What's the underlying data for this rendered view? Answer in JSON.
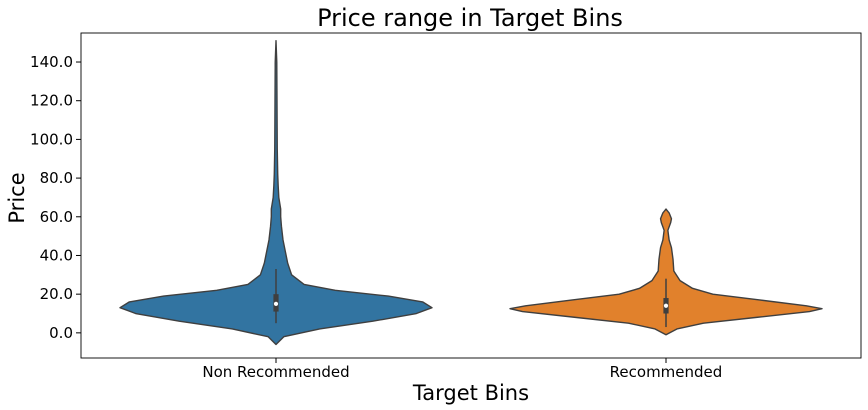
{
  "chart_data": {
    "type": "violin",
    "title": "Price range in Target Bins",
    "xlabel": "Target Bins",
    "ylabel": "Price",
    "categories": [
      "Non Recommended",
      "Recommended"
    ],
    "colors": [
      "#3274a1",
      "#e1812c"
    ],
    "ylim": [
      -13,
      155
    ],
    "yticks": [
      0,
      20,
      40,
      60,
      80,
      100,
      120,
      140
    ],
    "ytick_labels": [
      "0.0",
      "20.0",
      "40.0",
      "60.0",
      "80.0",
      "100.0",
      "120.0",
      "140.0"
    ],
    "grid": false,
    "legend": "none",
    "series": [
      {
        "category": "Non Recommended",
        "color": "#3274a1",
        "min": -6,
        "max": 151,
        "q1": 11,
        "median": 15,
        "q3": 20,
        "whisker_low": 5,
        "whisker_high": 33,
        "density_profile": [
          [
            -6,
            0
          ],
          [
            -2,
            0.05
          ],
          [
            2,
            0.28
          ],
          [
            6,
            0.62
          ],
          [
            10,
            0.9
          ],
          [
            13,
            1.0
          ],
          [
            16,
            0.94
          ],
          [
            19,
            0.72
          ],
          [
            22,
            0.38
          ],
          [
            25,
            0.18
          ],
          [
            30,
            0.1
          ],
          [
            36,
            0.075
          ],
          [
            42,
            0.06
          ],
          [
            48,
            0.045
          ],
          [
            55,
            0.035
          ],
          [
            60,
            0.03
          ],
          [
            64,
            0.03
          ],
          [
            70,
            0.018
          ],
          [
            76,
            0.014
          ],
          [
            82,
            0.011
          ],
          [
            95,
            0.008
          ],
          [
            110,
            0.007
          ],
          [
            125,
            0.006
          ],
          [
            140,
            0.005
          ],
          [
            151,
            0
          ]
        ]
      },
      {
        "category": "Recommended",
        "color": "#e1812c",
        "min": -1,
        "max": 64,
        "q1": 10,
        "median": 14,
        "q3": 18,
        "whisker_low": 3,
        "whisker_high": 28,
        "density_profile": [
          [
            -1,
            0
          ],
          [
            2,
            0.07
          ],
          [
            5,
            0.24
          ],
          [
            8,
            0.58
          ],
          [
            11,
            0.92
          ],
          [
            12.5,
            1.0
          ],
          [
            14,
            0.9
          ],
          [
            17,
            0.6
          ],
          [
            20,
            0.3
          ],
          [
            23,
            0.17
          ],
          [
            27,
            0.09
          ],
          [
            32,
            0.05
          ],
          [
            38,
            0.045
          ],
          [
            44,
            0.035
          ],
          [
            48,
            0.02
          ],
          [
            53,
            0.012
          ],
          [
            57,
            0.03
          ],
          [
            59,
            0.035
          ],
          [
            62,
            0.02
          ],
          [
            64,
            0
          ]
        ]
      }
    ]
  }
}
